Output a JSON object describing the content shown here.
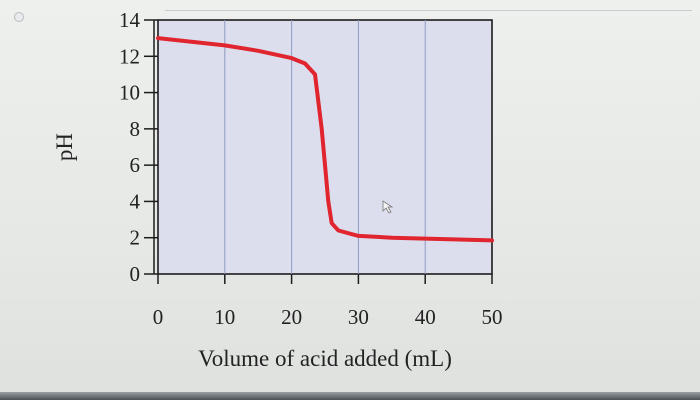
{
  "chart_data": {
    "type": "line",
    "title": "",
    "xlabel": "Volume of acid added (mL)",
    "ylabel": "pH",
    "xlim": [
      0,
      50
    ],
    "ylim": [
      0,
      14
    ],
    "x_ticks": [
      "0",
      "10",
      "20",
      "30",
      "40",
      "50"
    ],
    "y_ticks": [
      "0",
      "2",
      "4",
      "6",
      "8",
      "10",
      "12",
      "14"
    ],
    "grid": "vertical",
    "series": [
      {
        "color": "#e0252e",
        "x": [
          0,
          5,
          10,
          15,
          20,
          22,
          23.5,
          24.5,
          25,
          25.5,
          26,
          27,
          30,
          35,
          40,
          45,
          50
        ],
        "y": [
          13.0,
          12.8,
          12.6,
          12.3,
          11.9,
          11.6,
          11.0,
          8.0,
          6.0,
          4.0,
          2.8,
          2.4,
          2.1,
          2.0,
          1.95,
          1.9,
          1.85
        ]
      }
    ],
    "colors": {
      "plot_background": "#dcdeee",
      "grid_line": "#8f9bc4",
      "axis": "#1c1c1c",
      "text": "#222222"
    }
  }
}
